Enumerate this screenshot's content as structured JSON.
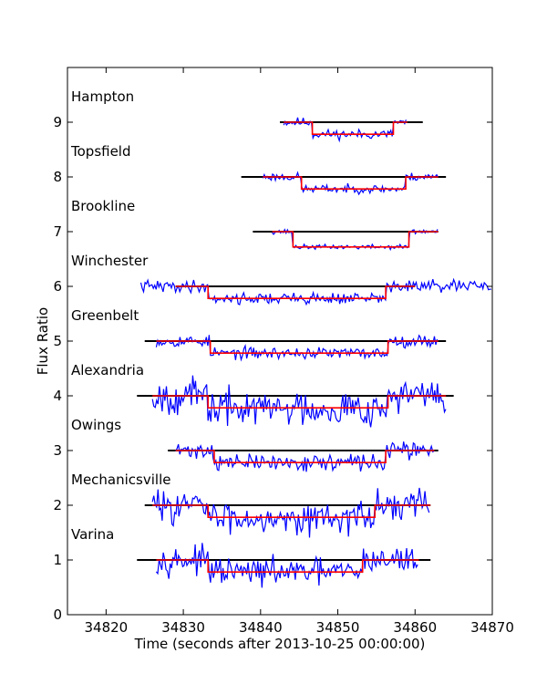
{
  "chart_data": {
    "type": "line",
    "xlabel": "Time (seconds after 2013-10-25 00:00:00)",
    "ylabel": "Flux Ratio",
    "xlim": [
      34815,
      34870
    ],
    "ylim": [
      0,
      10
    ],
    "xticks": [
      34820,
      34830,
      34840,
      34850,
      34860,
      34870
    ],
    "yticks": [
      0,
      1,
      2,
      3,
      4,
      5,
      6,
      7,
      8,
      9
    ],
    "grid": false,
    "colors": {
      "observed": "#0000ff",
      "model": "#ff0000",
      "baseline": "#000000"
    },
    "stations": [
      {
        "name": "Hampton",
        "offset": 9,
        "baseline": [
          34842.5,
          34861
        ],
        "data_range": [
          34843,
          34859
        ],
        "ingress": 34846.7,
        "egress": 34857.2,
        "depth": 0.22,
        "noise": 0.08,
        "seed": 11
      },
      {
        "name": "Topsfield",
        "offset": 8,
        "baseline": [
          34837.5,
          34864
        ],
        "data_range": [
          34840.3,
          34863
        ],
        "ingress": 34845.3,
        "egress": 34858.8,
        "depth": 0.22,
        "noise": 0.07,
        "seed": 23
      },
      {
        "name": "Brookline",
        "offset": 7,
        "baseline": [
          34839,
          34863
        ],
        "data_range": [
          34841.5,
          34863
        ],
        "ingress": 34844.2,
        "egress": 34859.2,
        "depth": 0.28,
        "noise": 0.04,
        "seed": 37
      },
      {
        "name": "Winchester",
        "offset": 6,
        "baseline": [
          34829,
          34860
        ],
        "data_range": [
          34824.5,
          34870
        ],
        "ingress": 34833.2,
        "egress": 34856.2,
        "depth": 0.22,
        "noise": 0.1,
        "seed": 41
      },
      {
        "name": "Greenbelt",
        "offset": 5,
        "baseline": [
          34825,
          34864
        ],
        "data_range": [
          34826.5,
          34863
        ],
        "ingress": 34833.5,
        "egress": 34856.5,
        "depth": 0.22,
        "noise": 0.1,
        "seed": 53
      },
      {
        "name": "Alexandria",
        "offset": 4,
        "baseline": [
          34824,
          34865
        ],
        "data_range": [
          34826,
          34864
        ],
        "ingress": 34833.2,
        "egress": 34856.5,
        "depth": 0.22,
        "noise": 0.3,
        "seed": 67
      },
      {
        "name": "Owings",
        "offset": 3,
        "baseline": [
          34828,
          34863
        ],
        "data_range": [
          34829,
          34862.5
        ],
        "ingress": 34834,
        "egress": 34856.2,
        "depth": 0.22,
        "noise": 0.14,
        "seed": 71
      },
      {
        "name": "Mechanicsville",
        "offset": 2,
        "baseline": [
          34825,
          34862
        ],
        "data_range": [
          34826,
          34862
        ],
        "ingress": 34833.2,
        "egress": 34854.8,
        "depth": 0.22,
        "noise": 0.26,
        "seed": 83
      },
      {
        "name": "Varina",
        "offset": 1,
        "baseline": [
          34824,
          34862
        ],
        "data_range": [
          34826.5,
          34860.5
        ],
        "ingress": 34833.2,
        "egress": 34853.2,
        "depth": 0.22,
        "noise": 0.22,
        "seed": 97
      }
    ]
  }
}
